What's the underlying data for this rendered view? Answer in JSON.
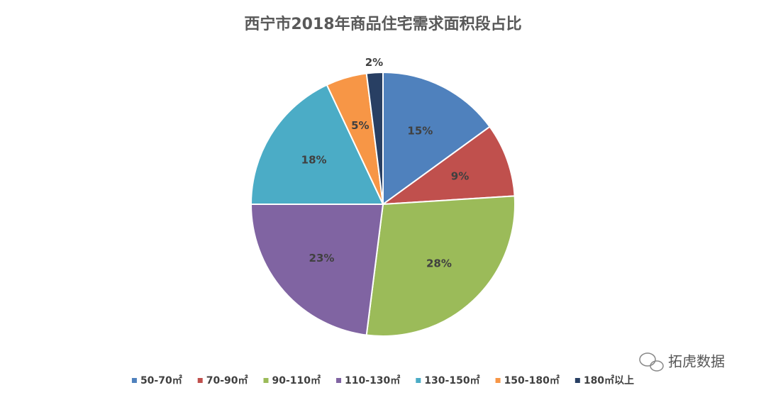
{
  "chart_data": {
    "type": "pie",
    "title": "西宁市2018年商品住宅需求面积段占比",
    "categories": [
      "50-70㎡",
      "70-90㎡",
      "90-110㎡",
      "110-130㎡",
      "130-150㎡",
      "150-180㎡",
      "180㎡以上"
    ],
    "values": [
      15,
      9,
      28,
      23,
      18,
      5,
      2
    ],
    "value_labels": [
      "15%",
      "9%",
      "28%",
      "23%",
      "18%",
      "5%",
      "2%"
    ],
    "colors": [
      "#4f81bd",
      "#c0504d",
      "#9bbb59",
      "#8064a2",
      "#4bacc6",
      "#f79646",
      "#283f63"
    ],
    "legend": "bottom",
    "watermark": "拓虎数据"
  }
}
